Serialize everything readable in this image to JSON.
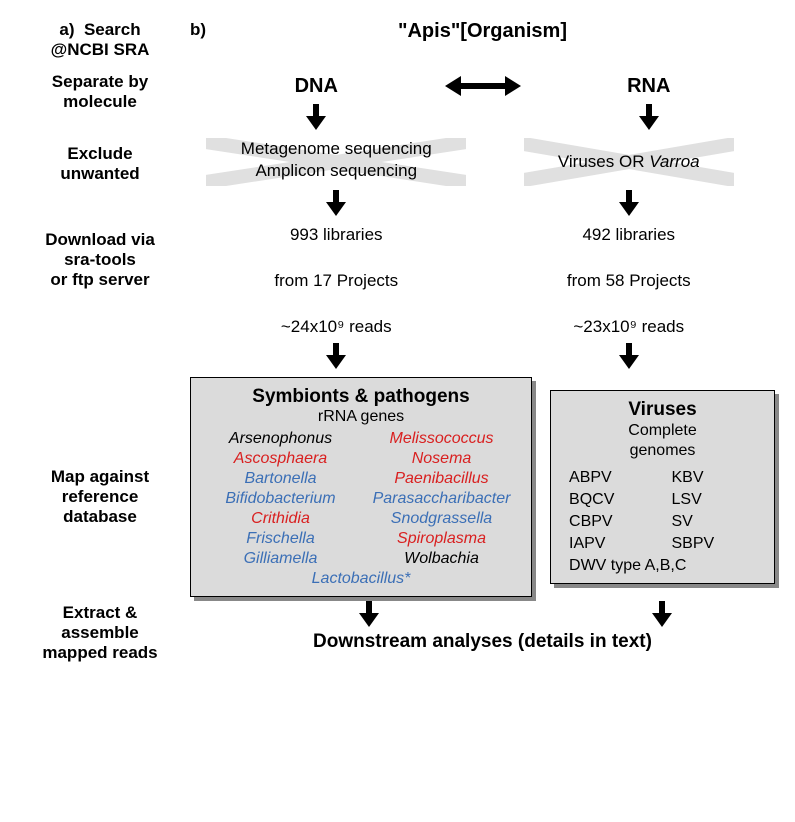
{
  "colors": {
    "black": "#000000",
    "commensal_blue": "#3b6fb6",
    "pathogen_red": "#d92020",
    "panel_bg": "#dbdbdb",
    "cross_gray": "#e0e0e0"
  },
  "fontsizes": {
    "label": 17,
    "header": 20,
    "body": 17,
    "panel_title": 19,
    "panel_sub": 16,
    "list": 16
  },
  "labels": {
    "a_prefix": "a)",
    "b_prefix": "b)",
    "search1": "Search",
    "search2": "@NCBI SRA",
    "separate1": "Separate by",
    "separate2": "molecule",
    "exclude1": "Exclude",
    "exclude2": "unwanted",
    "download1": "Download via",
    "download2": "sra-tools",
    "download3": "or ftp server",
    "map1": "Map against",
    "map2": "reference",
    "map3": "database",
    "extract1": "Extract &",
    "extract2": "assemble",
    "extract3": "mapped reads"
  },
  "headers": {
    "top": "\"Apis\"[Organism]",
    "dna": "DNA",
    "rna": "RNA"
  },
  "exclude": {
    "dna1": "Metagenome sequencing",
    "dna2": "Amplicon sequencing",
    "rna": "Viruses OR Varroa"
  },
  "stats": {
    "dna1": "993 libraries",
    "dna2": "from 17 Projects",
    "dna3": "~24x10⁹ reads",
    "rna1": "492 libraries",
    "rna2": "from 58 Projects",
    "rna3": "~23x10⁹ reads"
  },
  "panel_symbionts": {
    "title": "Symbionts & pathogens",
    "subtitle": "rRNA genes",
    "items": [
      {
        "name": "Arsenophonus",
        "color": "#000000"
      },
      {
        "name": "Melissococcus",
        "color": "#d92020"
      },
      {
        "name": "Ascosphaera",
        "color": "#d92020"
      },
      {
        "name": "Nosema",
        "color": "#d92020"
      },
      {
        "name": "Bartonella",
        "color": "#3b6fb6"
      },
      {
        "name": "Paenibacillus",
        "color": "#d92020"
      },
      {
        "name": "Bifidobacterium",
        "color": "#3b6fb6"
      },
      {
        "name": "Parasaccharibacter",
        "color": "#3b6fb6"
      },
      {
        "name": "Crithidia",
        "color": "#d92020"
      },
      {
        "name": "Snodgrassella",
        "color": "#3b6fb6"
      },
      {
        "name": "Frischella",
        "color": "#3b6fb6"
      },
      {
        "name": "Spiroplasma",
        "color": "#d92020"
      },
      {
        "name": "Gilliamella",
        "color": "#3b6fb6"
      },
      {
        "name": "Wolbachia",
        "color": "#000000"
      }
    ],
    "last": {
      "name": "Lactobacillus*",
      "color": "#3b6fb6"
    }
  },
  "panel_viruses": {
    "title": "Viruses",
    "subtitle1": "Complete",
    "subtitle2": "genomes",
    "items": [
      "ABPV",
      "KBV",
      "BQCV",
      "LSV",
      "CBPV",
      "SV",
      "IAPV",
      "SBPV"
    ],
    "last": "DWV type A,B,C"
  },
  "footer": "Downstream analyses (details in text)"
}
